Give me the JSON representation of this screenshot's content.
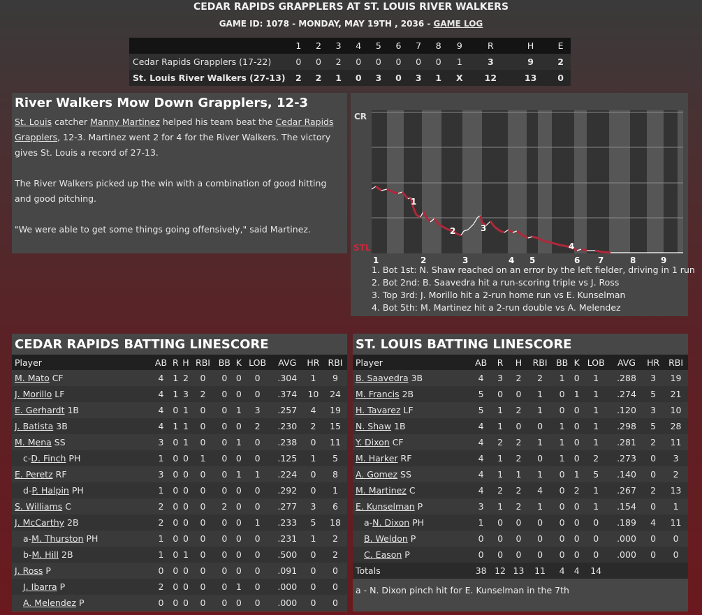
{
  "header": {
    "title": "CEDAR RAPIDS GRAPPLERS AT ST. LOUIS RIVER WALKERS",
    "sub_prefix": "GAME ID: 1078 - MONDAY, MAY 19TH , 2036 - ",
    "game_log": "GAME LOG"
  },
  "linescore": {
    "columns": [
      "",
      "1",
      "2",
      "3",
      "4",
      "5",
      "6",
      "7",
      "8",
      "9",
      "R",
      "H",
      "E"
    ],
    "rows": [
      {
        "team": "Cedar Rapids Grapplers (17-22)",
        "innings": [
          "0",
          "0",
          "2",
          "0",
          "0",
          "0",
          "0",
          "0",
          "1"
        ],
        "R": "3",
        "H": "9",
        "E": "2"
      },
      {
        "team": "St. Louis River Walkers (27-13)",
        "innings": [
          "2",
          "2",
          "1",
          "0",
          "3",
          "0",
          "3",
          "1",
          "X"
        ],
        "R": "12",
        "H": "13",
        "E": "0"
      }
    ]
  },
  "story": {
    "headline": "River Walkers Mow Down Grapplers, 12-3",
    "p1": {
      "team1": "St. Louis",
      "t1": " catcher ",
      "player": "Manny Martinez",
      "t2": " helped his team beat the ",
      "team2": "Cedar Rapids Grapplers",
      "t3": ", 12-3. Martinez went 2 for 4 for the River Walkers. The victory gives St. Louis a record of 27-13."
    },
    "p2": "The River Walkers picked up the win with a combination of good hitting and good pitching.",
    "p3": "\"We were able to get some things going offensively,\" said Martinez."
  },
  "win_prob": {
    "top_label": "CR",
    "bottom_label": "STL",
    "inning_labels": [
      "1",
      "2",
      "3",
      "4",
      "5",
      "6",
      "7",
      "8",
      "9"
    ],
    "markers": [
      "1",
      "2",
      "3",
      "4"
    ],
    "notes": [
      "1. Bot 1st: N. Shaw reached on an error by the left fielder, driving in 1 run",
      "2. Bot 2nd: B. Saavedra hit a run-scoring triple vs J. Ross",
      "3. Top 3rd: J. Morillo hit a 2-run home run vs E. Kunselman",
      "4. Bot 5th: M. Martinez hit a 2-run double vs A. Melendez"
    ],
    "colors": {
      "home": "#b0283a",
      "away": "#ffffff"
    }
  },
  "batting_columns": [
    "Player",
    "AB",
    "R",
    "H",
    "RBI",
    "BB",
    "K",
    "LOB",
    "AVG",
    "HR",
    "RBI"
  ],
  "cr_batting": {
    "title": "CEDAR RAPIDS BATTING LINESCORE",
    "rows": [
      {
        "prefix": "",
        "name": "M. Mato",
        "pos": "CF",
        "stats": [
          "4",
          "1",
          "2",
          "0",
          "0",
          "0",
          "0",
          ".304",
          "1",
          "9"
        ]
      },
      {
        "prefix": "",
        "name": "J. Morillo",
        "pos": "LF",
        "stats": [
          "4",
          "1",
          "3",
          "2",
          "0",
          "0",
          "0",
          ".374",
          "10",
          "24"
        ]
      },
      {
        "prefix": "",
        "name": "E. Gerhardt",
        "pos": "1B",
        "stats": [
          "4",
          "0",
          "1",
          "0",
          "0",
          "1",
          "3",
          ".257",
          "4",
          "19"
        ]
      },
      {
        "prefix": "",
        "name": "J. Batista",
        "pos": "3B",
        "stats": [
          "4",
          "1",
          "1",
          "0",
          "0",
          "0",
          "2",
          ".230",
          "2",
          "15"
        ]
      },
      {
        "prefix": "",
        "name": "M. Mena",
        "pos": "SS",
        "stats": [
          "3",
          "0",
          "1",
          "0",
          "0",
          "1",
          "0",
          ".238",
          "0",
          "11"
        ]
      },
      {
        "prefix": "c-",
        "name": "D. Finch",
        "pos": "PH",
        "stats": [
          "1",
          "0",
          "0",
          "1",
          "0",
          "0",
          "0",
          ".125",
          "1",
          "5"
        ]
      },
      {
        "prefix": "",
        "name": "E. Peretz",
        "pos": "RF",
        "stats": [
          "3",
          "0",
          "0",
          "0",
          "0",
          "1",
          "1",
          ".224",
          "0",
          "8"
        ]
      },
      {
        "prefix": "d-",
        "name": "P. Halpin",
        "pos": "PH",
        "stats": [
          "1",
          "0",
          "0",
          "0",
          "0",
          "0",
          "0",
          ".292",
          "0",
          "1"
        ]
      },
      {
        "prefix": "",
        "name": "S. Williams",
        "pos": "C",
        "stats": [
          "2",
          "0",
          "0",
          "0",
          "2",
          "0",
          "0",
          ".277",
          "3",
          "6"
        ]
      },
      {
        "prefix": "",
        "name": "J. McCarthy",
        "pos": "2B",
        "stats": [
          "2",
          "0",
          "0",
          "0",
          "0",
          "0",
          "1",
          ".233",
          "5",
          "18"
        ]
      },
      {
        "prefix": "a-",
        "name": "M. Thurston",
        "pos": "PH",
        "stats": [
          "1",
          "0",
          "0",
          "0",
          "0",
          "0",
          "0",
          ".231",
          "1",
          "2"
        ]
      },
      {
        "prefix": "b-",
        "name": "M. Hill",
        "pos": "2B",
        "stats": [
          "1",
          "0",
          "1",
          "0",
          "0",
          "0",
          "0",
          ".500",
          "0",
          "2"
        ]
      },
      {
        "prefix": "",
        "name": "J. Ross",
        "pos": "P",
        "stats": [
          "0",
          "0",
          "0",
          "0",
          "0",
          "0",
          "0",
          ".091",
          "0",
          "0"
        ]
      },
      {
        "prefix": "",
        "name": "J. Ibarra",
        "pos": "P",
        "stats": [
          "2",
          "0",
          "0",
          "0",
          "0",
          "1",
          "0",
          ".000",
          "0",
          "0"
        ],
        "indent": true
      },
      {
        "prefix": "",
        "name": "A. Melendez",
        "pos": "P",
        "stats": [
          "0",
          "0",
          "0",
          "0",
          "0",
          "0",
          "0",
          ".000",
          "0",
          "0"
        ],
        "indent": true
      }
    ]
  },
  "stl_batting": {
    "title": "ST. LOUIS BATTING LINESCORE",
    "rows": [
      {
        "prefix": "",
        "name": "B. Saavedra",
        "pos": "3B",
        "stats": [
          "4",
          "3",
          "2",
          "2",
          "1",
          "0",
          "1",
          ".288",
          "3",
          "19"
        ]
      },
      {
        "prefix": "",
        "name": "M. Francis",
        "pos": "2B",
        "stats": [
          "5",
          "0",
          "0",
          "1",
          "0",
          "1",
          "1",
          ".274",
          "5",
          "21"
        ]
      },
      {
        "prefix": "",
        "name": "H. Tavarez",
        "pos": "LF",
        "stats": [
          "5",
          "1",
          "2",
          "1",
          "0",
          "0",
          "1",
          ".120",
          "3",
          "10"
        ]
      },
      {
        "prefix": "",
        "name": "N. Shaw",
        "pos": "1B",
        "stats": [
          "4",
          "1",
          "0",
          "0",
          "1",
          "0",
          "1",
          ".298",
          "5",
          "28"
        ]
      },
      {
        "prefix": "",
        "name": "Y. Dixon",
        "pos": "CF",
        "stats": [
          "4",
          "2",
          "2",
          "1",
          "1",
          "0",
          "1",
          ".281",
          "2",
          "11"
        ]
      },
      {
        "prefix": "",
        "name": "M. Harker",
        "pos": "RF",
        "stats": [
          "4",
          "1",
          "2",
          "0",
          "1",
          "0",
          "2",
          ".273",
          "0",
          "3"
        ]
      },
      {
        "prefix": "",
        "name": "A. Gomez",
        "pos": "SS",
        "stats": [
          "4",
          "1",
          "1",
          "1",
          "0",
          "1",
          "5",
          ".140",
          "0",
          "2"
        ]
      },
      {
        "prefix": "",
        "name": "M. Martinez",
        "pos": "C",
        "stats": [
          "4",
          "2",
          "2",
          "4",
          "0",
          "2",
          "1",
          ".267",
          "2",
          "13"
        ]
      },
      {
        "prefix": "",
        "name": "E. Kunselman",
        "pos": "P",
        "stats": [
          "3",
          "1",
          "2",
          "1",
          "0",
          "0",
          "1",
          ".154",
          "0",
          "1"
        ]
      },
      {
        "prefix": "a-",
        "name": "N. Dixon",
        "pos": "PH",
        "stats": [
          "1",
          "0",
          "0",
          "0",
          "0",
          "0",
          "0",
          ".189",
          "4",
          "11"
        ],
        "indent": true
      },
      {
        "prefix": "",
        "name": "B. Weldon",
        "pos": "P",
        "stats": [
          "0",
          "0",
          "0",
          "0",
          "0",
          "0",
          "0",
          ".000",
          "0",
          "0"
        ],
        "indent": true
      },
      {
        "prefix": "",
        "name": "C. Eason",
        "pos": "P",
        "stats": [
          "0",
          "0",
          "0",
          "0",
          "0",
          "0",
          "0",
          ".000",
          "0",
          "0"
        ],
        "indent": true
      }
    ],
    "totals_label": "Totals",
    "totals": [
      "38",
      "12",
      "13",
      "11",
      "4",
      "4",
      "14",
      "",
      "",
      ""
    ],
    "note": "a - N. Dixon pinch hit for E. Kunselman in the 7th"
  }
}
